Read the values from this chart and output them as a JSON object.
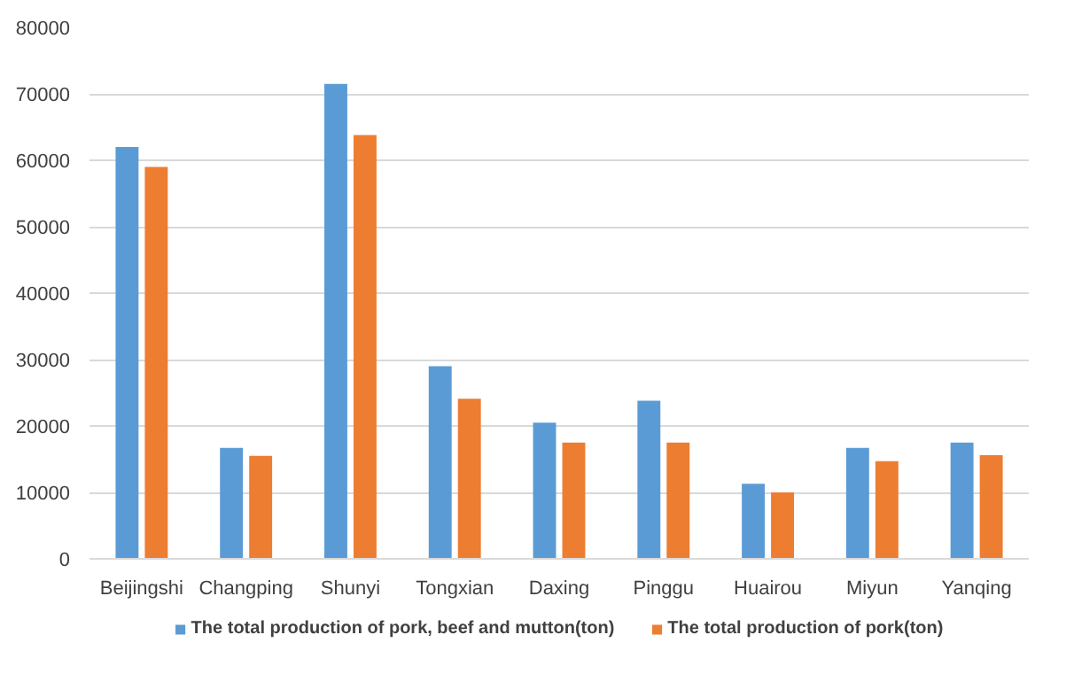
{
  "chart_data": {
    "type": "bar",
    "categories": [
      "Beijingshi",
      "Changping",
      "Shunyi",
      "Tongxian",
      "Daxing",
      "Pinggu",
      "Huairou",
      "Miyun",
      "Yanqing"
    ],
    "series": [
      {
        "name": "The total production of pork, beef and mutton(ton)",
        "color": "#5b9bd5",
        "values": [
          62000,
          16700,
          71500,
          29000,
          20500,
          23800,
          11300,
          16700,
          17500
        ]
      },
      {
        "name": "The total production of pork(ton)",
        "color": "#ed7d31",
        "values": [
          59000,
          15500,
          63800,
          24100,
          17500,
          17500,
          10000,
          14700,
          15600
        ]
      }
    ],
    "ylim": [
      0,
      80000
    ],
    "yticks": [
      0,
      10000,
      20000,
      30000,
      40000,
      50000,
      60000,
      70000,
      80000
    ],
    "grid": "y",
    "legend": "bottom"
  }
}
